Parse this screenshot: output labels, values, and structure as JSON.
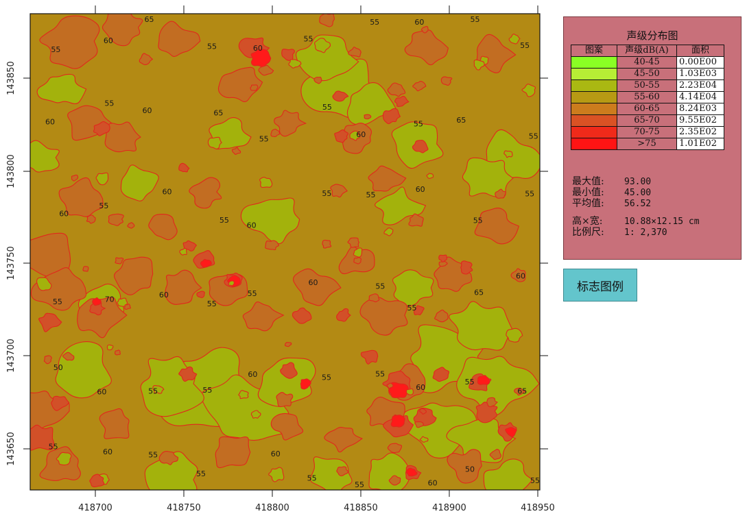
{
  "map": {
    "x_ticks": [
      "418700",
      "418750",
      "418800",
      "418850",
      "418900",
      "418950"
    ],
    "y_ticks": [
      "143850",
      "143800",
      "143750",
      "143700",
      "143650"
    ],
    "colors": {
      "band_50_55": "#a3b20c",
      "band_55_60": "#b38a14",
      "band_60_65": "#c26d22",
      "band_65_70": "#d25028",
      "contour_line": "#e0281c",
      "hotspot": "#ff1a1a"
    },
    "contour_labels": [
      "55",
      "60",
      "65",
      "55",
      "60",
      "55",
      "55",
      "60",
      "55",
      "55",
      "60",
      "55",
      "60",
      "65",
      "55",
      "55",
      "60",
      "55",
      "65",
      "55",
      "60",
      "55",
      "60",
      "55",
      "60",
      "55",
      "55",
      "60",
      "55",
      "55",
      "55",
      "70",
      "60",
      "55",
      "55",
      "60",
      "55",
      "55",
      "65",
      "60",
      "50",
      "60",
      "55",
      "55",
      "60",
      "55",
      "55",
      "60",
      "55",
      "65",
      "55",
      "60",
      "55",
      "55",
      "60",
      "55",
      "55",
      "60",
      "50",
      "55"
    ]
  },
  "legend": {
    "title": "声级分布图",
    "headers": [
      "图案",
      "声级dB(A)",
      "面积"
    ],
    "rows": [
      {
        "color": "#8aff24",
        "range": "40-45",
        "area": "0.00E00"
      },
      {
        "color": "#b7ee35",
        "range": "45-50",
        "area": "1.03E03"
      },
      {
        "color": "#aab812",
        "range": "50-55",
        "area": "2.23E04"
      },
      {
        "color": "#b79a14",
        "range": "55-60",
        "area": "4.14E04"
      },
      {
        "color": "#cc7c1d",
        "range": "60-65",
        "area": "8.24E03"
      },
      {
        "color": "#da5224",
        "range": "65-70",
        "area": "9.55E02"
      },
      {
        "color": "#f02a1a",
        "range": "70-75",
        "area": "2.35E02"
      },
      {
        "color": "#ff1414",
        "range": ">75",
        "area": "1.01E02"
      }
    ],
    "stats": {
      "max_label": "最大值:",
      "max_value": "93.00",
      "min_label": "最小值:",
      "min_value": "45.00",
      "avg_label": "平均值:",
      "avg_value": "56.52",
      "size_label": "高×宽:",
      "size_value": "10.88×12.15 cm",
      "scale_label": "比例尺:",
      "scale_value": "1: 2,370"
    }
  },
  "legend_button": {
    "label": "标志图例"
  }
}
